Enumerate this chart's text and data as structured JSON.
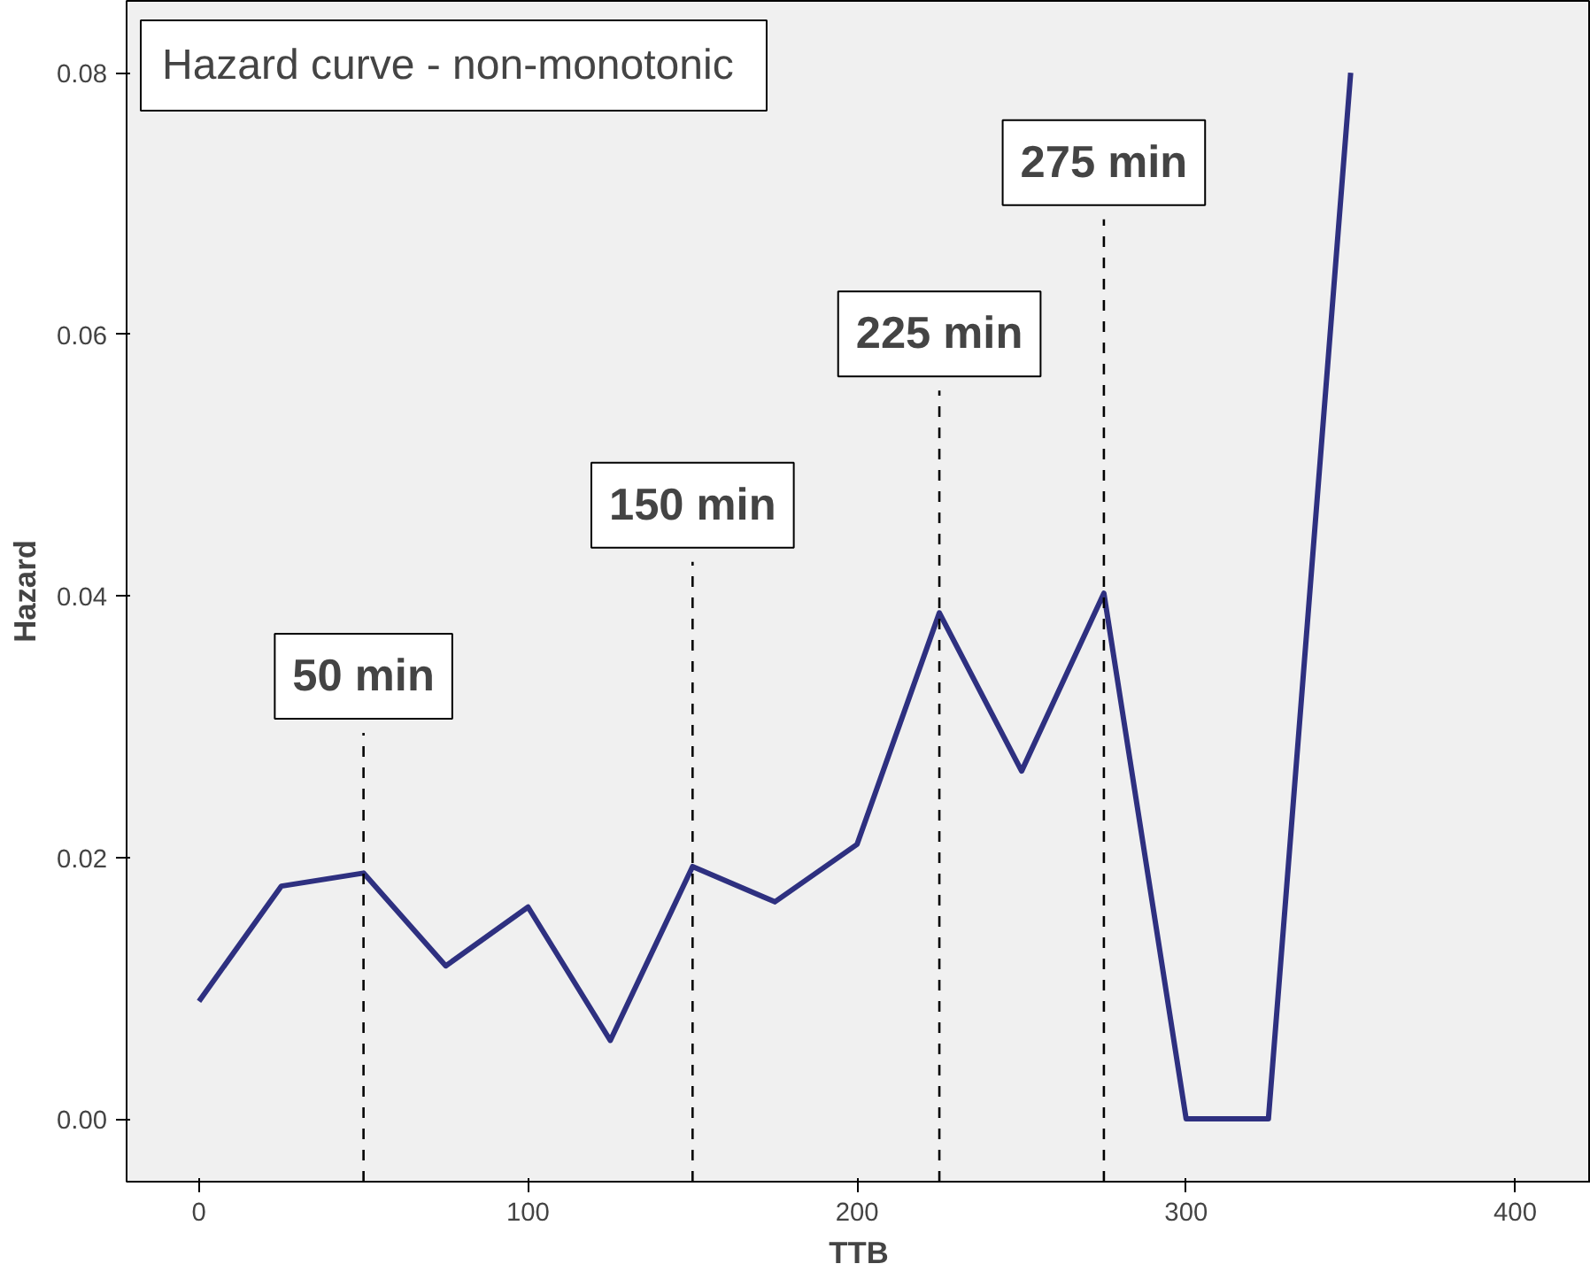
{
  "chart_data": {
    "type": "line",
    "title": "Hazard curve -  non-monotonic",
    "xlabel": "TTB",
    "ylabel": "Hazard",
    "x": [
      0,
      25,
      50,
      75,
      100,
      125,
      150,
      175,
      200,
      225,
      250,
      275,
      300,
      325,
      350
    ],
    "series": [
      {
        "color": "#2e3080",
        "values": [
          0.009,
          0.0178,
          0.0188,
          0.0117,
          0.0162,
          0.006,
          0.0193,
          0.0166,
          0.021,
          0.0387,
          0.0266,
          0.0402,
          0,
          0,
          0.08
        ]
      }
    ],
    "xlim": [
      -22,
      423
    ],
    "xticks": [
      0,
      100,
      200,
      300,
      400
    ],
    "ylim": [
      -0.0048,
      0.0855
    ],
    "yticks": [
      {
        "value": 0,
        "label": "0.00"
      },
      {
        "value": 0.02,
        "label": "0.02"
      },
      {
        "value": 0.04,
        "label": "0.04"
      },
      {
        "value": 0.06,
        "label": "0.06"
      },
      {
        "value": 0.08,
        "label": "0.08"
      }
    ],
    "ref_lines": [
      {
        "axis": "x",
        "value": 50,
        "label": "50 min",
        "color": "#000000",
        "line_style": "dashed"
      },
      {
        "axis": "x",
        "value": 150,
        "label": "150 min",
        "color": "#000000",
        "line_style": "dashed"
      },
      {
        "axis": "x",
        "value": 225,
        "label": "225 min",
        "color": "#000000",
        "line_style": "dashed"
      },
      {
        "axis": "x",
        "value": 275,
        "label": "275 min",
        "color": "#000000",
        "line_style": "dashed"
      }
    ],
    "grid": false
  }
}
